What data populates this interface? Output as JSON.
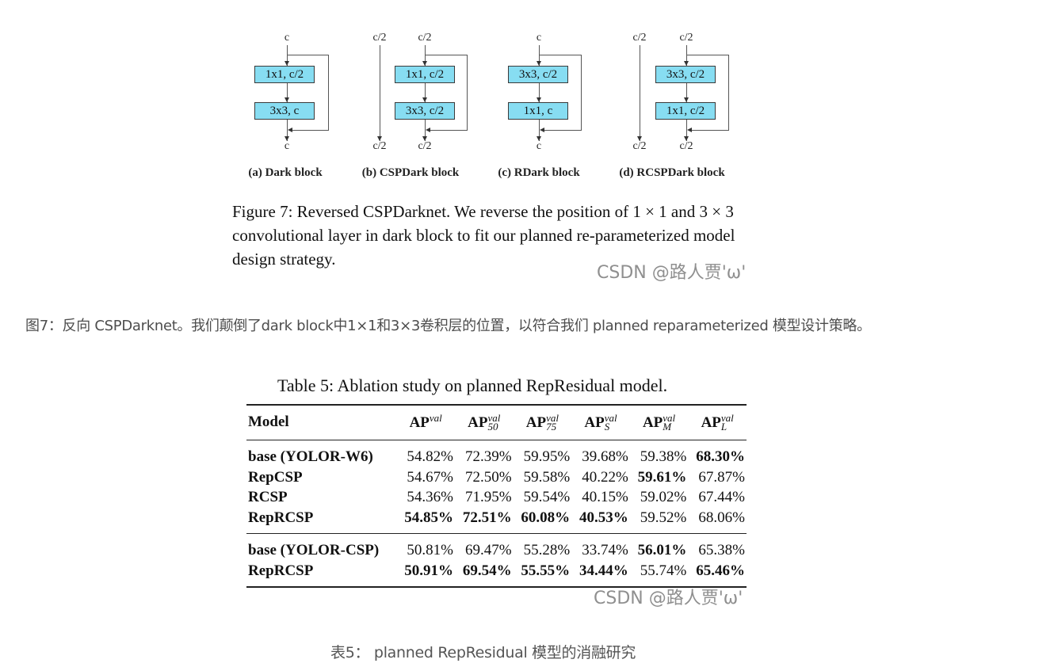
{
  "figure7": {
    "blocks": [
      {
        "caption": "(a) Dark block",
        "top_label": "c",
        "bottom_label": "c",
        "box1": "1x1, c/2",
        "box2": "3x3, c"
      },
      {
        "caption": "(b) CSPDark block",
        "bypass_top": "c/2",
        "bypass_bottom": "c/2",
        "top_label": "c/2",
        "bottom_label": "c/2",
        "box1": "1x1, c/2",
        "box2": "3x3, c/2"
      },
      {
        "caption": "(c) RDark block",
        "top_label": "c",
        "bottom_label": "c",
        "box1": "3x3, c/2",
        "box2": "1x1, c"
      },
      {
        "caption": "(d) RCSPDark block",
        "bypass_top": "c/2",
        "bypass_bottom": "c/2",
        "top_label": "c/2",
        "bottom_label": "c/2",
        "box1": "3x3, c/2",
        "box2": "1x1, c/2"
      }
    ],
    "caption": "Figure 7: Reversed CSPDarknet. We reverse the position of 1 × 1 and 3 × 3 convolutional layer in dark block to fit our planned re-parameterized model design strategy.",
    "box_color": "#87ddf2"
  },
  "watermark": "CSDN @路人贾'ω'",
  "figure7_translation": "图7：反向 CSPDarknet。我们颠倒了dark block中1×1和3×3卷积层的位置，以符合我们 planned reparameterized 模型设计策略。",
  "table5": {
    "title": "Table 5: Ablation study on planned RepResidual model.",
    "columns": {
      "model": "Model",
      "ap": {
        "base": "AP",
        "sup": "val",
        "sub": ""
      },
      "ap50": {
        "base": "AP",
        "sup": "val",
        "sub": "50"
      },
      "ap75": {
        "base": "AP",
        "sup": "val",
        "sub": "75"
      },
      "aps": {
        "base": "AP",
        "sup": "val",
        "sub": "S"
      },
      "apm": {
        "base": "AP",
        "sup": "val",
        "sub": "M"
      },
      "apl": {
        "base": "AP",
        "sup": "val",
        "sub": "L"
      }
    },
    "rows": [
      {
        "model": "base (YOLOR-W6)",
        "ap": "54.82%",
        "ap50": "72.39%",
        "ap75": "59.95%",
        "aps": "39.68%",
        "apm": "59.38%",
        "apl": "68.30%"
      },
      {
        "model": "RepCSP",
        "ap": "54.67%",
        "ap50": "72.50%",
        "ap75": "59.58%",
        "aps": "40.22%",
        "apm": "59.61%",
        "apl": "67.87%"
      },
      {
        "model": "RCSP",
        "ap": "54.36%",
        "ap50": "71.95%",
        "ap75": "59.54%",
        "aps": "40.15%",
        "apm": "59.02%",
        "apl": "67.44%"
      },
      {
        "model": "RepRCSP",
        "ap": "54.85%",
        "ap50": "72.51%",
        "ap75": "60.08%",
        "aps": "40.53%",
        "apm": "59.52%",
        "apl": "68.06%"
      },
      {
        "model": "base (YOLOR-CSP)",
        "ap": "50.81%",
        "ap50": "69.47%",
        "ap75": "55.28%",
        "aps": "33.74%",
        "apm": "56.01%",
        "apl": "65.38%"
      },
      {
        "model": "RepRCSP",
        "ap": "50.91%",
        "ap50": "69.54%",
        "ap75": "55.55%",
        "aps": "34.44%",
        "apm": "55.74%",
        "apl": "65.46%"
      }
    ]
  },
  "table5_translation": "表5：   planned RepResidual 模型的消融研究"
}
